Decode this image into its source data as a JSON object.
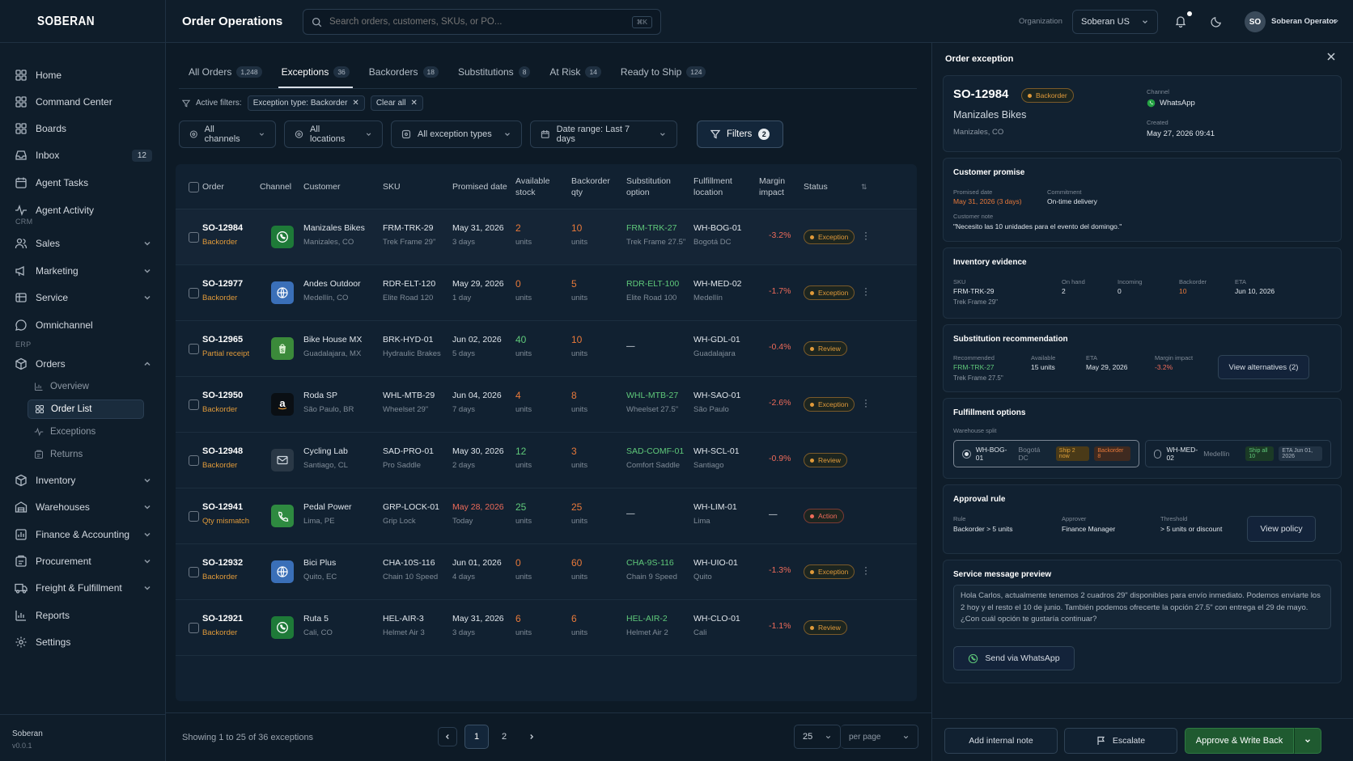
{
  "app": {
    "logo": "SOBERAN",
    "version": "v0.0.1",
    "footer_name": "Soberan"
  },
  "topbar": {
    "title": "Order Operations",
    "search_placeholder": "Search orders, customers, SKUs, or PO...",
    "search_kbd": "⌘K",
    "org_label": "Organization",
    "org_value": "Soberan US",
    "avatar": "SO",
    "user": "Soberan Operator"
  },
  "sidebar": {
    "items": [
      {
        "label": "Home",
        "icon": "grid-icon"
      },
      {
        "label": "Command Center",
        "icon": "grid-icon"
      },
      {
        "label": "Boards",
        "icon": "grid-icon"
      },
      {
        "label": "Inbox",
        "icon": "inbox-icon",
        "badge": "12"
      },
      {
        "label": "Agent Tasks",
        "icon": "calendar-icon"
      },
      {
        "label": "Agent Activity",
        "icon": "activity-icon"
      }
    ],
    "crm_label": "CRM",
    "crm": [
      {
        "label": "Sales",
        "icon": "users-icon"
      },
      {
        "label": "Marketing",
        "icon": "megaphone-icon"
      },
      {
        "label": "Service",
        "icon": "service-icon"
      },
      {
        "label": "Omnichannel",
        "icon": "chat-icon"
      }
    ],
    "erp_label": "ERP",
    "orders_label": "Orders",
    "orders_sub": [
      "Overview",
      "Order List",
      "Exceptions",
      "Returns"
    ],
    "erp": [
      {
        "label": "Inventory",
        "icon": "box-icon"
      },
      {
        "label": "Warehouses",
        "icon": "warehouse-icon"
      },
      {
        "label": "Finance & Accounting",
        "icon": "finance-icon"
      },
      {
        "label": "Procurement",
        "icon": "procurement-icon"
      },
      {
        "label": "Freight & Fulfillment",
        "icon": "truck-icon"
      },
      {
        "label": "Reports",
        "icon": "chart-icon"
      },
      {
        "label": "Settings",
        "icon": "gear-icon"
      }
    ]
  },
  "tabs": [
    {
      "label": "All Orders",
      "count": "1,248"
    },
    {
      "label": "Exceptions",
      "count": "36"
    },
    {
      "label": "Backorders",
      "count": "18"
    },
    {
      "label": "Substitutions",
      "count": "8"
    },
    {
      "label": "At Risk",
      "count": "14"
    },
    {
      "label": "Ready to Ship",
      "count": "124"
    }
  ],
  "filters": {
    "active_label": "Active filters:",
    "chip": "Exception type: Backorder",
    "clear": "Clear all",
    "channels": "All channels",
    "locations": "All locations",
    "types": "All exception types",
    "date": "Date range: Last 7 days",
    "button": "Filters",
    "button_count": "2"
  },
  "columns": [
    "Order",
    "Channel",
    "Customer",
    "SKU",
    "Promised date",
    "Available stock",
    "Backorder qty",
    "Substitution option",
    "Fulfillment location",
    "Margin impact",
    "Status"
  ],
  "rows": [
    {
      "id": "SO-12984",
      "tag": "Backorder",
      "channel": "whatsapp",
      "customer": "Manizales Bikes",
      "city": "Manizales, CO",
      "sku": "FRM-TRK-29",
      "sku_name": "Trek Frame 29\"",
      "date": "May 31, 2026",
      "days": "3 days",
      "avail": "2",
      "avail_color": "orange",
      "bo": "10",
      "sub": "FRM-TRK-27",
      "sub_name": "Trek Frame 27.5\"",
      "loc": "WH-BOG-01",
      "loc_city": "Bogotá DC",
      "margin": "-3.2%",
      "status": "Exception"
    },
    {
      "id": "SO-12977",
      "tag": "Backorder",
      "channel": "web",
      "customer": "Andes Outdoor",
      "city": "Medellín, CO",
      "sku": "RDR-ELT-120",
      "sku_name": "Elite Road 120",
      "date": "May 29, 2026",
      "days": "1 day",
      "avail": "0",
      "avail_color": "orange",
      "bo": "5",
      "sub": "RDR-ELT-100",
      "sub_name": "Elite Road 100",
      "loc": "WH-MED-02",
      "loc_city": "Medellín",
      "margin": "-1.7%",
      "status": "Exception"
    },
    {
      "id": "SO-12965",
      "tag": "Partial receipt",
      "channel": "shopify",
      "customer": "Bike House MX",
      "city": "Guadalajara, MX",
      "sku": "BRK-HYD-01",
      "sku_name": "Hydraulic Brakes",
      "date": "Jun 02, 2026",
      "days": "5 days",
      "avail": "40",
      "avail_color": "green",
      "bo": "10",
      "sub": "—",
      "sub_name": "",
      "loc": "WH-GDL-01",
      "loc_city": "Guadalajara",
      "margin": "-0.4%",
      "status": "Review"
    },
    {
      "id": "SO-12950",
      "tag": "Backorder",
      "channel": "amazon",
      "customer": "Roda SP",
      "city": "São Paulo, BR",
      "sku": "WHL-MTB-29",
      "sku_name": "Wheelset 29\"",
      "date": "Jun 04, 2026",
      "days": "7 days",
      "avail": "4",
      "avail_color": "orange",
      "bo": "8",
      "sub": "WHL-MTB-27",
      "sub_name": "Wheelset 27.5\"",
      "loc": "WH-SAO-01",
      "loc_city": "São Paulo",
      "margin": "-2.6%",
      "status": "Exception"
    },
    {
      "id": "SO-12948",
      "tag": "Backorder",
      "channel": "email",
      "customer": "Cycling Lab",
      "city": "Santiago, CL",
      "sku": "SAD-PRO-01",
      "sku_name": "Pro Saddle",
      "date": "May 30, 2026",
      "days": "2 days",
      "avail": "12",
      "avail_color": "green",
      "bo": "3",
      "sub": "SAD-COMF-01",
      "sub_name": "Comfort Saddle",
      "loc": "WH-SCL-01",
      "loc_city": "Santiago",
      "margin": "-0.9%",
      "status": "Review"
    },
    {
      "id": "SO-12941",
      "tag": "Qty mismatch",
      "channel": "phone",
      "customer": "Pedal Power",
      "city": "Lima, PE",
      "sku": "GRP-LOCK-01",
      "sku_name": "Grip Lock",
      "date": "May 28, 2026",
      "days": "Today",
      "avail": "25",
      "avail_color": "green",
      "bo": "25",
      "sub": "—",
      "sub_name": "",
      "loc": "WH-LIM-01",
      "loc_city": "Lima",
      "margin": "—",
      "status": "Action"
    },
    {
      "id": "SO-12932",
      "tag": "Backorder",
      "channel": "web",
      "customer": "Bici Plus",
      "city": "Quito, EC",
      "sku": "CHA-10S-116",
      "sku_name": "Chain 10 Speed",
      "date": "Jun 01, 2026",
      "days": "4 days",
      "avail": "0",
      "avail_color": "orange",
      "bo": "60",
      "sub": "CHA-9S-116",
      "sub_name": "Chain 9 Speed",
      "loc": "WH-UIO-01",
      "loc_city": "Quito",
      "margin": "-1.3%",
      "status": "Exception"
    },
    {
      "id": "SO-12921",
      "tag": "Backorder",
      "channel": "whatsapp",
      "customer": "Ruta 5",
      "city": "Cali, CO",
      "sku": "HEL-AIR-3",
      "sku_name": "Helmet Air 3",
      "date": "May 31, 2026",
      "days": "3 days",
      "avail": "6",
      "avail_color": "orange",
      "bo": "6",
      "sub": "HEL-AIR-2",
      "sub_name": "Helmet Air 2",
      "loc": "WH-CLO-01",
      "loc_city": "Cali",
      "margin": "-1.1%",
      "status": "Review"
    }
  ],
  "units": "units",
  "pagination": {
    "showing": "Showing 1 to 25 of 36 exceptions",
    "pages": [
      "1",
      "2"
    ],
    "per_page_value": "25",
    "per_page_label": "per page"
  },
  "panel": {
    "title": "Order exception",
    "order_id": "SO-12984",
    "badge": "Backorder",
    "customer": "Manizales Bikes",
    "city": "Manizales, CO",
    "channel_label": "Channel",
    "channel": "WhatsApp",
    "created_label": "Created",
    "created": "May 27, 2026 09:41",
    "promise": {
      "title": "Customer promise",
      "date_label": "Promised date",
      "date": "May 31, 2026 (3 days)",
      "commit_label": "Commitment",
      "commit": "On-time delivery",
      "note_label": "Customer note",
      "note": "\"Necesito las 10 unidades para el evento del domingo.\""
    },
    "inventory": {
      "title": "Inventory evidence",
      "sku_label": "SKU",
      "sku": "FRM-TRK-29",
      "sku_name": "Trek Frame 29\"",
      "onhand_label": "On hand",
      "onhand": "2",
      "incoming_label": "Incoming",
      "incoming": "0",
      "bo_label": "Backorder",
      "bo": "10",
      "eta_label": "ETA",
      "eta": "Jun 10, 2026"
    },
    "substitution": {
      "title": "Substitution recommendation",
      "rec_label": "Recommended",
      "rec": "FRM-TRK-27",
      "rec_name": "Trek Frame 27.5\"",
      "avail_label": "Available",
      "avail": "15 units",
      "eta_label": "ETA",
      "eta": "May 29, 2026",
      "margin_label": "Margin impact",
      "margin": "-3.2%",
      "button": "View alternatives (2)"
    },
    "fulfillment": {
      "title": "Fulfillment options",
      "split_label": "Warehouse split",
      "opt1_code": "WH-BOG-01",
      "opt1_city": "Bogotá DC",
      "opt1_tag1": "Ship 2 now",
      "opt1_tag2": "Backorder 8",
      "opt2_code": "WH-MED-02",
      "opt2_city": "Medellín",
      "opt2_tag1": "Ship all 10",
      "opt2_tag2": "ETA Jun 01, 2026"
    },
    "approval": {
      "title": "Approval rule",
      "rule_label": "Rule",
      "rule": "Backorder > 5 units",
      "approver_label": "Approver",
      "approver": "Finance Manager",
      "threshold_label": "Threshold",
      "threshold": "> 5 units or discount",
      "button": "View policy"
    },
    "message": {
      "title": "Service message preview",
      "text": "Hola Carlos, actualmente tenemos 2 cuadros 29\" disponibles para envío inmediato. Podemos enviarte los 2 hoy y el resto el 10 de junio. También podemos ofrecerte la opción 27.5\" con entrega el 29 de mayo. ¿Con cuál opción te gustaría continuar?",
      "button": "Send via WhatsApp"
    },
    "actions": {
      "note": "Add internal note",
      "escalate": "Escalate",
      "approve": "Approve & Write Back"
    }
  },
  "colors": {
    "accent_orange": "#e8793a",
    "green": "#5fc97a",
    "red": "#ef6b5a",
    "whatsapp": "#25a244",
    "web": "#3b7fd6"
  }
}
